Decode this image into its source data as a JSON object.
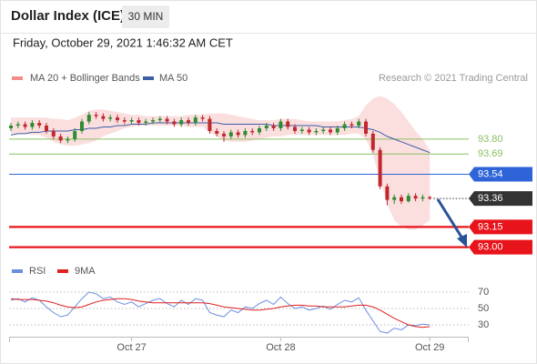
{
  "header": {
    "title": "Dollar Index (ICE)",
    "timeframe": "30 MIN",
    "date": "Friday, October 29, 2021 1:46:32 AM CET"
  },
  "chart_data": [
    {
      "type": "candlestick",
      "credit": "Research © 2021 Trading Central",
      "up_color": "#2e8b2e",
      "down_color": "#c0282d",
      "categories": [
        null,
        null,
        null,
        null,
        null,
        null,
        null,
        null,
        null,
        null,
        null,
        null,
        null,
        null,
        null,
        null,
        null,
        "Oct 27",
        null,
        null,
        null,
        null,
        null,
        null,
        null,
        null,
        null,
        null,
        null,
        null,
        null,
        null,
        null,
        null,
        null,
        null,
        null,
        null,
        "Oct 28",
        null,
        null,
        null,
        null,
        null,
        null,
        null,
        null,
        null,
        null,
        null,
        null,
        null,
        null,
        null,
        null,
        null,
        null,
        null,
        null,
        "Oct 29"
      ],
      "open": [
        93.88,
        93.9,
        93.91,
        93.89,
        93.92,
        93.9,
        93.86,
        93.82,
        93.79,
        93.8,
        93.86,
        93.93,
        93.98,
        93.97,
        93.95,
        93.96,
        93.94,
        93.93,
        93.94,
        93.92,
        93.93,
        93.94,
        93.95,
        93.93,
        93.91,
        93.94,
        93.92,
        93.96,
        93.95,
        93.86,
        93.84,
        93.82,
        93.85,
        93.83,
        93.86,
        93.85,
        93.88,
        93.9,
        93.88,
        93.93,
        93.89,
        93.86,
        93.87,
        93.85,
        93.86,
        93.87,
        93.85,
        93.88,
        93.91,
        93.9,
        93.93,
        93.84,
        93.72,
        93.45,
        93.35,
        93.37,
        93.34,
        93.38,
        93.36,
        93.37
      ],
      "high": [
        93.92,
        93.93,
        93.93,
        93.94,
        93.94,
        93.92,
        93.88,
        93.84,
        93.82,
        93.88,
        93.95,
        94.0,
        94.0,
        93.99,
        93.98,
        93.98,
        93.96,
        93.96,
        93.96,
        93.95,
        93.96,
        93.97,
        93.97,
        93.95,
        93.96,
        93.96,
        93.98,
        93.98,
        93.97,
        93.88,
        93.86,
        93.87,
        93.87,
        93.88,
        93.88,
        93.9,
        93.92,
        93.92,
        93.95,
        93.95,
        93.91,
        93.89,
        93.89,
        93.88,
        93.89,
        93.89,
        93.9,
        93.93,
        93.93,
        93.95,
        93.95,
        93.86,
        93.74,
        93.47,
        93.39,
        93.39,
        93.4,
        93.4,
        93.39,
        93.38
      ],
      "low": [
        93.86,
        93.88,
        93.87,
        93.87,
        93.88,
        93.84,
        93.8,
        93.77,
        93.77,
        93.78,
        93.84,
        93.91,
        93.95,
        93.93,
        93.93,
        93.92,
        93.91,
        93.91,
        93.9,
        93.9,
        93.91,
        93.92,
        93.91,
        93.89,
        93.89,
        93.9,
        93.9,
        93.93,
        93.84,
        93.82,
        93.78,
        93.8,
        93.81,
        93.81,
        93.83,
        93.83,
        93.86,
        93.86,
        93.86,
        93.87,
        93.84,
        93.84,
        93.83,
        93.83,
        93.84,
        93.83,
        93.83,
        93.86,
        93.88,
        93.88,
        93.82,
        93.7,
        93.43,
        93.31,
        93.32,
        93.32,
        93.33,
        93.34,
        93.34,
        93.35
      ],
      "close": [
        93.9,
        93.91,
        93.89,
        93.92,
        93.9,
        93.86,
        93.82,
        93.79,
        93.8,
        93.86,
        93.93,
        93.98,
        93.97,
        93.95,
        93.96,
        93.94,
        93.93,
        93.94,
        93.92,
        93.93,
        93.94,
        93.95,
        93.93,
        93.91,
        93.94,
        93.92,
        93.96,
        93.95,
        93.86,
        93.84,
        93.82,
        93.85,
        93.83,
        93.86,
        93.85,
        93.88,
        93.9,
        93.88,
        93.93,
        93.89,
        93.86,
        93.87,
        93.85,
        93.86,
        93.87,
        93.85,
        93.88,
        93.91,
        93.9,
        93.93,
        93.84,
        93.72,
        93.45,
        93.35,
        93.37,
        93.34,
        93.38,
        93.36,
        93.37,
        93.36
      ],
      "bands": {
        "name": "MA 20 + Bollinger Bands",
        "color": "#f28b8b",
        "upper": [
          93.96,
          93.96,
          93.96,
          93.96,
          93.96,
          93.96,
          93.95,
          93.95,
          93.94,
          93.96,
          93.98,
          94.01,
          94.02,
          94.02,
          94.01,
          94.0,
          93.99,
          93.98,
          93.98,
          93.97,
          93.97,
          93.97,
          93.97,
          93.97,
          93.97,
          93.98,
          93.98,
          93.98,
          93.99,
          93.99,
          93.99,
          93.98,
          93.97,
          93.96,
          93.95,
          93.94,
          93.94,
          93.94,
          93.95,
          93.95,
          93.95,
          93.94,
          93.93,
          93.93,
          93.93,
          93.93,
          93.93,
          93.94,
          93.95,
          93.97,
          94.05,
          94.1,
          94.12,
          94.1,
          94.06,
          94.0,
          93.93,
          93.86,
          93.8,
          93.72
        ],
        "lower": [
          93.84,
          93.84,
          93.84,
          93.83,
          93.83,
          93.81,
          93.78,
          93.76,
          93.75,
          93.75,
          93.76,
          93.77,
          93.79,
          93.82,
          93.84,
          93.86,
          93.88,
          93.89,
          93.9,
          93.9,
          93.9,
          93.9,
          93.9,
          93.9,
          93.9,
          93.89,
          93.89,
          93.89,
          93.85,
          93.82,
          93.79,
          93.78,
          93.78,
          93.78,
          93.79,
          93.8,
          93.81,
          93.82,
          93.82,
          93.83,
          93.83,
          93.83,
          93.83,
          93.83,
          93.83,
          93.83,
          93.83,
          93.83,
          93.84,
          93.84,
          93.8,
          93.68,
          93.5,
          93.32,
          93.2,
          93.15,
          93.13,
          93.13,
          93.16,
          93.2
        ]
      },
      "series": [
        {
          "name": "MA 50",
          "color": "#3c5ea8",
          "values": [
            93.83,
            93.84,
            93.84,
            93.85,
            93.85,
            93.86,
            93.86,
            93.86,
            93.86,
            93.87,
            93.87,
            93.88,
            93.88,
            93.89,
            93.89,
            93.9,
            93.9,
            93.91,
            93.91,
            93.91,
            93.92,
            93.92,
            93.92,
            93.92,
            93.92,
            93.92,
            93.92,
            93.92,
            93.92,
            93.92,
            93.91,
            93.91,
            93.91,
            93.91,
            93.91,
            93.91,
            93.91,
            93.9,
            93.9,
            93.9,
            93.9,
            93.9,
            93.9,
            93.9,
            93.89,
            93.89,
            93.89,
            93.89,
            93.89,
            93.89,
            93.88,
            93.87,
            93.85,
            93.82,
            93.8,
            93.78,
            93.76,
            93.74,
            93.72,
            93.7
          ]
        }
      ],
      "levels": [
        {
          "price": {
            "value": 93.8,
            "label": "93.80"
          },
          "kind": "line",
          "color": "#8cc063"
        },
        {
          "price": 93.69,
          "kind": "line",
          "color": "#8cc063"
        },
        {
          "price": 93.54,
          "kind": "box",
          "color": "#2f63d8"
        },
        {
          "price": 93.36,
          "kind": "last",
          "color": "#333333"
        },
        {
          "price": 93.15,
          "kind": "box",
          "color": "#e8141b"
        },
        {
          "price": {
            "value": 93.0,
            "label": "93.00"
          },
          "kind": "box",
          "color": "#e8141b"
        }
      ],
      "ylim": [
        92.91,
        94.156
      ]
    },
    {
      "type": "line",
      "series": [
        {
          "name": "RSI",
          "color": "#6b8ee0",
          "values": [
            60,
            62,
            58,
            63,
            60,
            52,
            45,
            40,
            42,
            52,
            62,
            70,
            68,
            62,
            64,
            58,
            55,
            58,
            52,
            56,
            60,
            62,
            56,
            52,
            60,
            55,
            62,
            60,
            45,
            42,
            40,
            48,
            45,
            52,
            50,
            56,
            60,
            55,
            64,
            56,
            50,
            52,
            48,
            50,
            53,
            49,
            55,
            60,
            58,
            63,
            48,
            35,
            22,
            20,
            26,
            24,
            30,
            29,
            31,
            30
          ]
        },
        {
          "name": "9MA",
          "color": "#e02020",
          "values": [
            62,
            61,
            61,
            61,
            60,
            59,
            57,
            54,
            52,
            51,
            52,
            55,
            58,
            60,
            61,
            62,
            62,
            61,
            59,
            58,
            57,
            57,
            57,
            57,
            57,
            57,
            57,
            57,
            56,
            54,
            52,
            51,
            50,
            49,
            48,
            48,
            49,
            50,
            52,
            53,
            54,
            54,
            53,
            53,
            52,
            52,
            52,
            52,
            53,
            54,
            54,
            52,
            48,
            43,
            38,
            34,
            30,
            28,
            27,
            28
          ]
        }
      ],
      "ylim": [
        15.6,
        93.3
      ],
      "yticks": [
        70,
        50,
        30
      ],
      "grid": true
    }
  ]
}
